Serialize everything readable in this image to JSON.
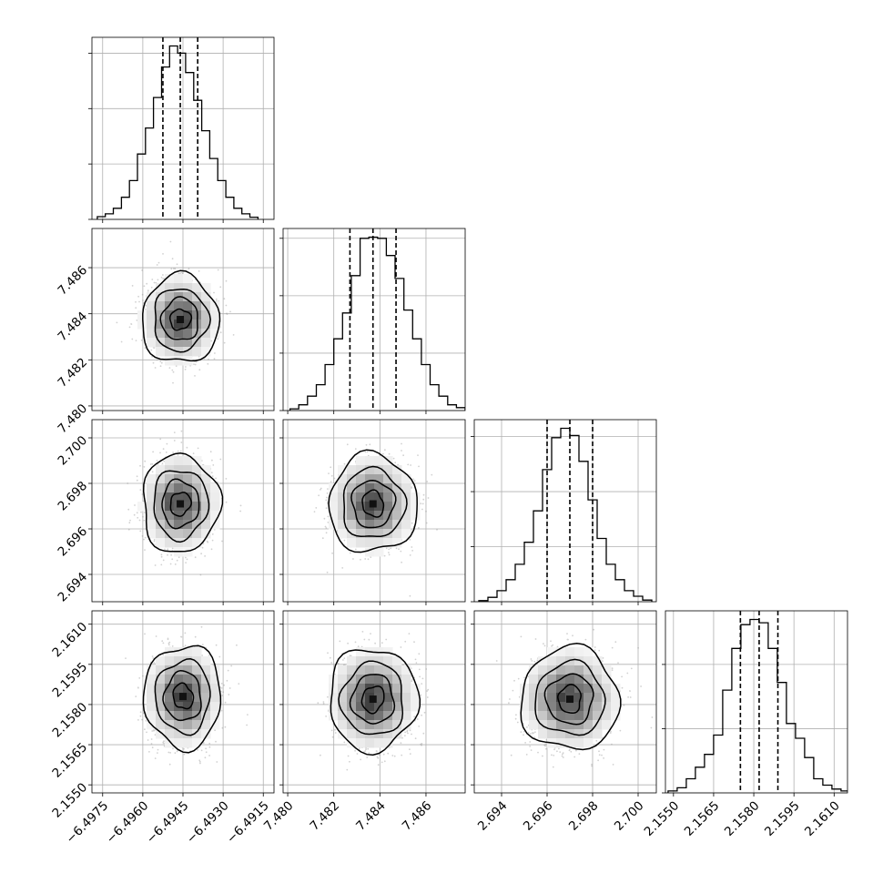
{
  "chart_data": {
    "type": "corner",
    "grid": true,
    "quantile_style": "dashed",
    "parameters": [
      {
        "range": [
          -6.4979,
          -6.4911
        ],
        "ticks": [
          -6.4975,
          -6.496,
          -6.4945,
          -6.493,
          -6.4915
        ],
        "tick_labels": [
          "−6.4975",
          "−6.4960",
          "−6.4945",
          "−6.4930",
          "−6.4915"
        ],
        "quantiles": [
          -6.49525,
          -6.4946,
          -6.49395
        ],
        "bin_edges": [
          -6.4977,
          -6.4974,
          -6.4971,
          -6.4968,
          -6.4965,
          -6.4962,
          -6.4959,
          -6.4956,
          -6.4953,
          -6.495,
          -6.4947,
          -6.4944,
          -6.4941,
          -6.4938,
          -6.4935,
          -6.4932,
          -6.4929,
          -6.4926,
          -6.4923,
          -6.492,
          -6.4917
        ],
        "counts": [
          5,
          10,
          20,
          40,
          70,
          118,
          165,
          220,
          275,
          313,
          300,
          265,
          215,
          160,
          110,
          70,
          40,
          20,
          10,
          4
        ],
        "hist_ticks": [
          0,
          100,
          200,
          300
        ]
      },
      {
        "range": [
          7.4798,
          7.4877
        ],
        "ticks": [
          7.48,
          7.482,
          7.484,
          7.486
        ],
        "tick_labels": [
          "7.480",
          "7.482",
          "7.484",
          "7.486"
        ],
        "quantiles": [
          7.4827,
          7.4837,
          7.4847
        ],
        "bin_edges": [
          7.4801,
          7.48048,
          7.48086,
          7.48124,
          7.48162,
          7.482,
          7.48238,
          7.48276,
          7.48314,
          7.48352,
          7.4839,
          7.48428,
          7.48466,
          7.48504,
          7.48542,
          7.4858,
          7.48618,
          7.48656,
          7.48694,
          7.48732,
          7.4877
        ],
        "counts": [
          3,
          10,
          25,
          45,
          80,
          125,
          170,
          235,
          300,
          302,
          300,
          270,
          230,
          175,
          125,
          80,
          45,
          25,
          10,
          5
        ],
        "hist_ticks": [
          0,
          100,
          200,
          300
        ]
      },
      {
        "range": [
          2.6928,
          2.7008
        ],
        "ticks": [
          2.694,
          2.696,
          2.698,
          2.7
        ],
        "tick_labels": [
          "2.694",
          "2.696",
          "2.698",
          "2.700"
        ],
        "quantiles": [
          2.696,
          2.697,
          2.698
        ],
        "bin_edges": [
          2.693,
          2.6934,
          2.6938,
          2.6942,
          2.6946,
          2.695,
          2.6954,
          2.6958,
          2.6962,
          2.6966,
          2.697,
          2.6974,
          2.6978,
          2.6982,
          2.6986,
          2.699,
          2.6994,
          2.6998,
          2.7002,
          2.7006
        ],
        "counts": [
          2,
          8,
          20,
          40,
          68,
          108,
          165,
          240,
          298,
          315,
          302,
          255,
          185,
          115,
          68,
          40,
          20,
          10,
          3
        ],
        "hist_ticks": [
          0,
          100,
          200,
          300
        ]
      },
      {
        "range": [
          2.1547,
          2.1615
        ],
        "ticks": [
          2.155,
          2.1565,
          2.158,
          2.1595,
          2.161
        ],
        "tick_labels": [
          "2.1550",
          "2.1565",
          "2.1580",
          "2.1595",
          "2.1610"
        ],
        "quantiles": [
          2.1575,
          2.1582,
          2.1589
        ],
        "bin_edges": [
          2.1548,
          2.15514,
          2.15548,
          2.15582,
          2.15616,
          2.1565,
          2.15684,
          2.15718,
          2.15752,
          2.15786,
          2.1582,
          2.15854,
          2.15888,
          2.15922,
          2.15956,
          2.1599,
          2.16024,
          2.16058,
          2.16092,
          2.16126,
          2.1616
        ],
        "counts": [
          3,
          8,
          22,
          40,
          60,
          90,
          160,
          225,
          262,
          270,
          265,
          225,
          172,
          108,
          85,
          55,
          22,
          12,
          6,
          3
        ],
        "hist_ticks": [
          0,
          100,
          200
        ]
      }
    ],
    "pairs": [
      {
        "row": 1,
        "col": 0,
        "center": [
          -6.4946,
          7.48375
        ],
        "sigma": [
          0.0006,
          0.0008
        ]
      },
      {
        "row": 2,
        "col": 0,
        "center": [
          -6.4946,
          2.6971
        ],
        "sigma": [
          0.0006,
          0.0009
        ]
      },
      {
        "row": 2,
        "col": 1,
        "center": [
          7.4837,
          2.6971
        ],
        "sigma": [
          0.0008,
          0.0009
        ]
      },
      {
        "row": 3,
        "col": 0,
        "center": [
          -6.4945,
          2.1583
        ],
        "sigma": [
          0.0006,
          0.0008
        ]
      },
      {
        "row": 3,
        "col": 1,
        "center": [
          7.4837,
          2.1582
        ],
        "sigma": [
          0.0008,
          0.0008
        ]
      },
      {
        "row": 3,
        "col": 2,
        "center": [
          2.697,
          2.1582
        ],
        "sigma": [
          0.0009,
          0.0008
        ]
      }
    ],
    "contour_levels_sigma": [
      0.6,
      1.15,
      1.7,
      2.4
    ]
  }
}
